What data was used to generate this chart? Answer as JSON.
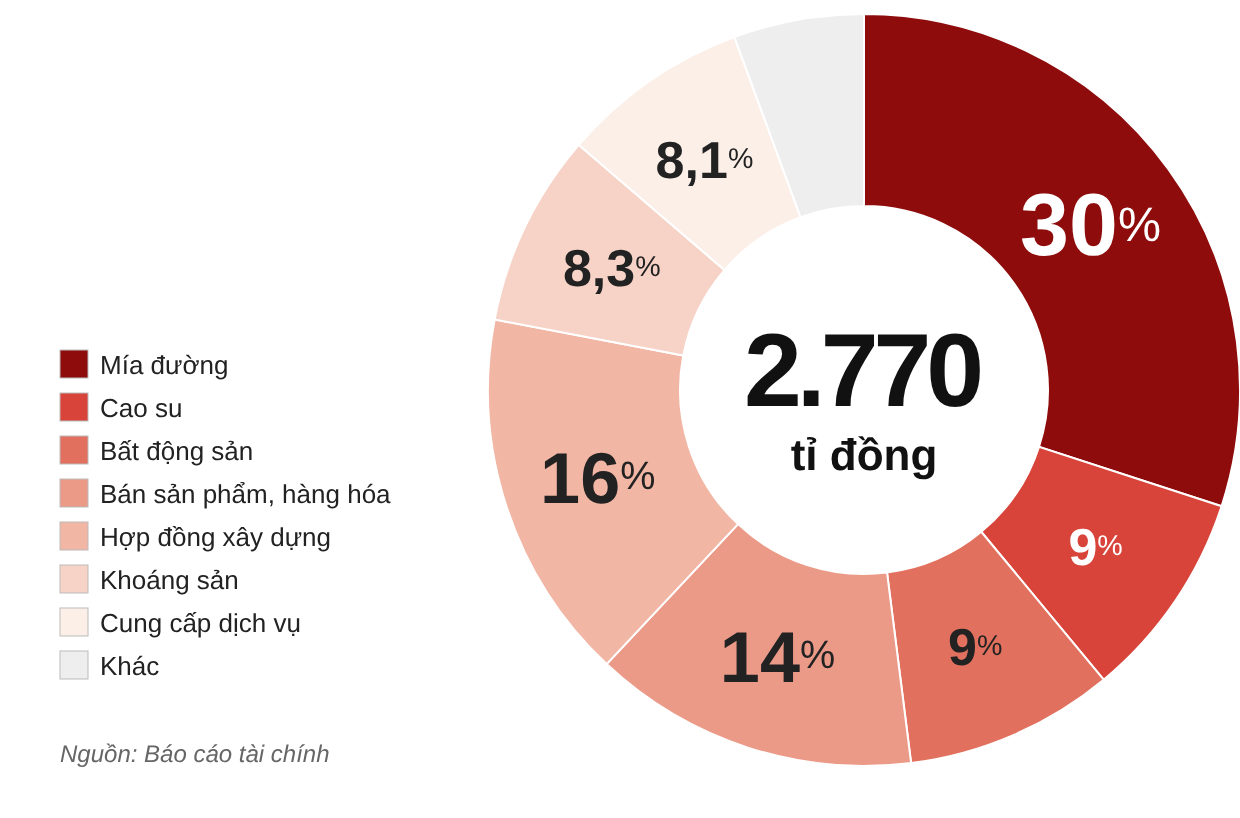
{
  "chart_data": {
    "type": "donut",
    "categories": [
      "Mía đường",
      "Cao su",
      "Bất động sản",
      "Bán sản phẩm, hàng hóa",
      "Hợp đồng xây dựng",
      "Khoáng sản",
      "Cung cấp dịch vụ",
      "Khác"
    ],
    "values": [
      30,
      9,
      9,
      14,
      16,
      8.3,
      8.1,
      5.6
    ],
    "colors": [
      "#8e0c0c",
      "#d8433a",
      "#e2705e",
      "#eb9a88",
      "#f2b6a5",
      "#f7d2c6",
      "#fcefe8",
      "#eeeeee"
    ],
    "value_labels": [
      "30%",
      "9%",
      "9%",
      "14%",
      "16%",
      "8,3%",
      "8,1%",
      null
    ],
    "legend": "left",
    "annotations": [
      "2.770",
      "tỉ đồng",
      "Nguồn: Báo cáo tài chính"
    ]
  }
}
